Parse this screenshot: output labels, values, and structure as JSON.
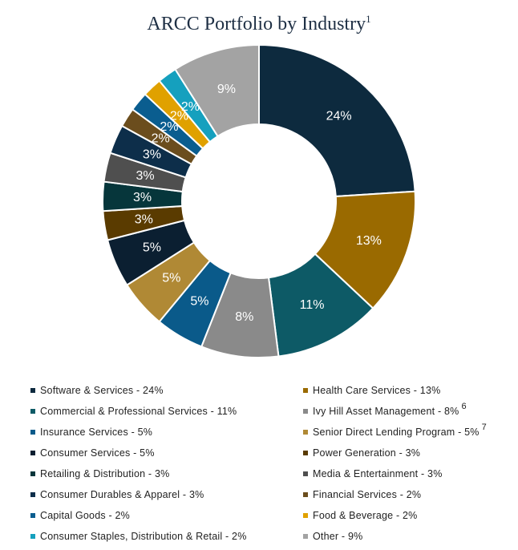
{
  "chart_data": {
    "type": "pie",
    "title": "ARCC Portfolio by Industry",
    "title_superscript": "1",
    "slices": [
      {
        "label": "Software & Services",
        "value": 24,
        "color": "#0d2a3e",
        "legend_text": "Software & Services - 24%",
        "note": ""
      },
      {
        "label": "Health Care Services",
        "value": 13,
        "color": "#9a6a00",
        "legend_text": "Health Care Services - 13%",
        "note": ""
      },
      {
        "label": "Commercial & Professional Services",
        "value": 11,
        "color": "#0d5a66",
        "legend_text": "Commercial & Professional Services - 11%",
        "note": ""
      },
      {
        "label": "Ivy Hill Asset Management",
        "value": 8,
        "color": "#8a8a8a",
        "legend_text": "Ivy Hill Asset Management  - 8%",
        "note": "6"
      },
      {
        "label": "Insurance Services",
        "value": 5,
        "color": "#0a5a8a",
        "legend_text": "Insurance Services - 5%",
        "note": ""
      },
      {
        "label": "Senior Direct Lending Program",
        "value": 5,
        "color": "#b08935",
        "legend_text": "Senior Direct Lending Program  - 5%",
        "note": "7"
      },
      {
        "label": "Consumer Services",
        "value": 5,
        "color": "#0b1f31",
        "legend_text": "Consumer Services - 5%",
        "note": ""
      },
      {
        "label": "Power Generation",
        "value": 3,
        "color": "#5a3b00",
        "legend_text": "Power Generation - 3%",
        "note": ""
      },
      {
        "label": "Retailing & Distribution",
        "value": 3,
        "color": "#06363b",
        "legend_text": "Retailing & Distribution - 3%",
        "note": ""
      },
      {
        "label": "Media & Entertainment",
        "value": 3,
        "color": "#4f4f4f",
        "legend_text": "Media & Entertainment - 3%",
        "note": ""
      },
      {
        "label": "Consumer Durables & Apparel",
        "value": 3,
        "color": "#0d2e4a",
        "legend_text": "Consumer Durables & Apparel - 3%",
        "note": ""
      },
      {
        "label": "Financial Services",
        "value": 2,
        "color": "#6b4d1d",
        "legend_text": "Financial Services - 2%",
        "note": ""
      },
      {
        "label": "Capital Goods",
        "value": 2,
        "color": "#0a5d8f",
        "legend_text": "Capital Goods - 2%",
        "note": ""
      },
      {
        "label": "Food & Beverage",
        "value": 2,
        "color": "#e0a100",
        "legend_text": "Food & Beverage - 2%",
        "note": ""
      },
      {
        "label": "Consumer Staples, Distribution & Retail",
        "value": 2,
        "color": "#15a0be",
        "legend_text": "Consumer Staples, Distribution & Retail  - 2%",
        "note": ""
      },
      {
        "label": "Other",
        "value": 9,
        "color": "#a3a3a3",
        "legend_text": "Other - 9%",
        "note": ""
      }
    ],
    "legend_placement": "bottom"
  }
}
